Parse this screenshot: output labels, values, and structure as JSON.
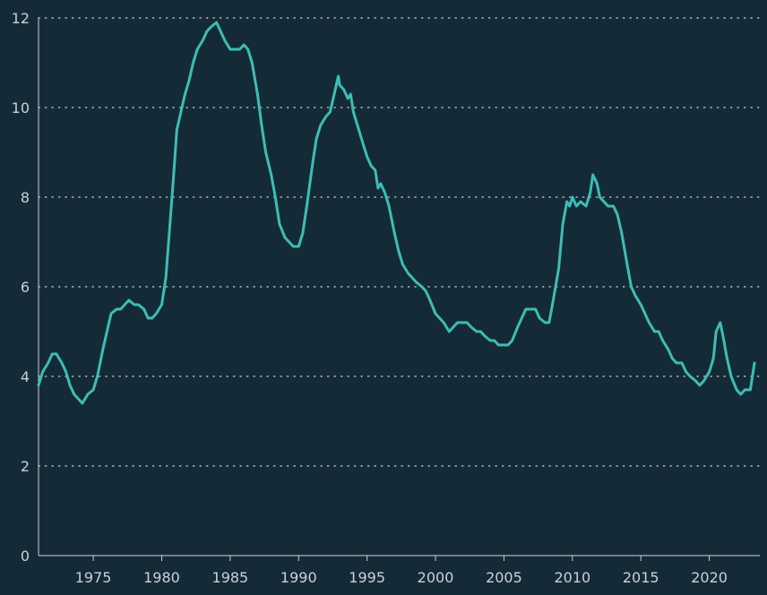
{
  "colors": {
    "background": "#152a37",
    "line": "#3dbdb4",
    "axis_text": "#c9d1d6",
    "grid": "#c9d1d6"
  },
  "chart_data": {
    "type": "line",
    "title": "",
    "xlabel": "",
    "ylabel": "",
    "xlim": [
      1971.0,
      2023.3
    ],
    "ylim": [
      0,
      12
    ],
    "x_ticks": [
      1975,
      1980,
      1985,
      1990,
      1995,
      2000,
      2005,
      2010,
      2015,
      2020
    ],
    "y_ticks": [
      0,
      2,
      4,
      6,
      8,
      10,
      12
    ],
    "x_tick_labels": [
      "1975",
      "1980",
      "1985",
      "1990",
      "1995",
      "2000",
      "2005",
      "2010",
      "2015",
      "2020"
    ],
    "y_tick_labels": [
      "0",
      "2",
      "4",
      "6",
      "8",
      "10",
      "12"
    ],
    "grid": "horizontal dotted",
    "legend": "none",
    "series": [
      {
        "x": [
          1971.0,
          1971.3,
          1971.7,
          1972.0,
          1972.3,
          1972.7,
          1973.0,
          1973.3,
          1973.6,
          1973.9,
          1974.2,
          1974.6,
          1975.0,
          1975.3,
          1975.7,
          1976.0,
          1976.3,
          1976.7,
          1977.0,
          1977.3,
          1977.6,
          1978.0,
          1978.3,
          1978.7,
          1979.0,
          1979.3,
          1979.6,
          1980.0,
          1980.3,
          1980.6,
          1980.9,
          1981.1,
          1981.4,
          1981.7,
          1982.0,
          1982.3,
          1982.6,
          1983.0,
          1983.3,
          1983.6,
          1984.0,
          1984.3,
          1984.6,
          1985.0,
          1985.3,
          1985.7,
          1986.0,
          1986.3,
          1986.6,
          1987.0,
          1987.3,
          1987.6,
          1988.0,
          1988.3,
          1988.6,
          1989.0,
          1989.3,
          1989.6,
          1990.0,
          1990.3,
          1990.6,
          1991.0,
          1991.3,
          1991.6,
          1992.0,
          1992.3,
          1992.6,
          1992.9,
          1993.0,
          1993.3,
          1993.6,
          1993.8,
          1994.0,
          1994.3,
          1994.6,
          1995.0,
          1995.3,
          1995.6,
          1995.8,
          1996.0,
          1996.3,
          1996.6,
          1997.0,
          1997.3,
          1997.6,
          1998.0,
          1998.3,
          1998.6,
          1999.0,
          1999.3,
          1999.6,
          2000.0,
          2000.3,
          2000.6,
          2001.0,
          2001.3,
          2001.6,
          2002.0,
          2002.3,
          2002.6,
          2003.0,
          2003.3,
          2003.6,
          2004.0,
          2004.3,
          2004.6,
          2005.0,
          2005.3,
          2005.6,
          2006.0,
          2006.3,
          2006.6,
          2007.0,
          2007.3,
          2007.6,
          2008.0,
          2008.3,
          2008.6,
          2009.0,
          2009.3,
          2009.6,
          2009.8,
          2010.0,
          2010.3,
          2010.6,
          2011.0,
          2011.3,
          2011.5,
          2011.8,
          2012.0,
          2012.3,
          2012.6,
          2013.0,
          2013.3,
          2013.6,
          2014.0,
          2014.3,
          2014.6,
          2015.0,
          2015.3,
          2015.6,
          2016.0,
          2016.3,
          2016.6,
          2017.0,
          2017.3,
          2017.6,
          2018.0,
          2018.3,
          2018.6,
          2019.0,
          2019.3,
          2019.6,
          2020.0,
          2020.3,
          2020.5,
          2020.8,
          2021.0,
          2021.3,
          2021.6,
          2022.0,
          2022.3,
          2022.6,
          2023.0,
          2023.3
        ],
        "values": [
          3.8,
          4.1,
          4.3,
          4.5,
          4.5,
          4.3,
          4.1,
          3.8,
          3.6,
          3.5,
          3.4,
          3.6,
          3.7,
          4.0,
          4.6,
          5.0,
          5.4,
          5.5,
          5.5,
          5.6,
          5.7,
          5.6,
          5.6,
          5.5,
          5.3,
          5.3,
          5.4,
          5.6,
          6.2,
          7.4,
          8.6,
          9.5,
          9.9,
          10.3,
          10.6,
          11.0,
          11.3,
          11.5,
          11.7,
          11.8,
          11.9,
          11.7,
          11.5,
          11.3,
          11.3,
          11.3,
          11.4,
          11.3,
          11.0,
          10.3,
          9.6,
          9.0,
          8.5,
          8.0,
          7.4,
          7.1,
          7.0,
          6.9,
          6.9,
          7.2,
          7.8,
          8.7,
          9.3,
          9.6,
          9.8,
          9.9,
          10.3,
          10.7,
          10.5,
          10.4,
          10.2,
          10.3,
          9.9,
          9.6,
          9.3,
          8.9,
          8.7,
          8.6,
          8.2,
          8.3,
          8.1,
          7.8,
          7.2,
          6.8,
          6.5,
          6.3,
          6.2,
          6.1,
          6.0,
          5.9,
          5.7,
          5.4,
          5.3,
          5.2,
          5.0,
          5.1,
          5.2,
          5.2,
          5.2,
          5.1,
          5.0,
          5.0,
          4.9,
          4.8,
          4.8,
          4.7,
          4.7,
          4.7,
          4.8,
          5.1,
          5.3,
          5.5,
          5.5,
          5.5,
          5.3,
          5.2,
          5.2,
          5.7,
          6.4,
          7.4,
          7.9,
          7.8,
          8.0,
          7.8,
          7.9,
          7.8,
          8.1,
          8.5,
          8.3,
          8.0,
          7.9,
          7.8,
          7.8,
          7.6,
          7.2,
          6.5,
          6.0,
          5.8,
          5.6,
          5.4,
          5.2,
          5.0,
          5.0,
          4.8,
          4.6,
          4.4,
          4.3,
          4.3,
          4.1,
          4.0,
          3.9,
          3.8,
          3.9,
          4.1,
          4.4,
          5.0,
          5.2,
          4.9,
          4.4,
          4.0,
          3.7,
          3.6,
          3.7,
          3.7,
          4.3
        ]
      }
    ]
  }
}
